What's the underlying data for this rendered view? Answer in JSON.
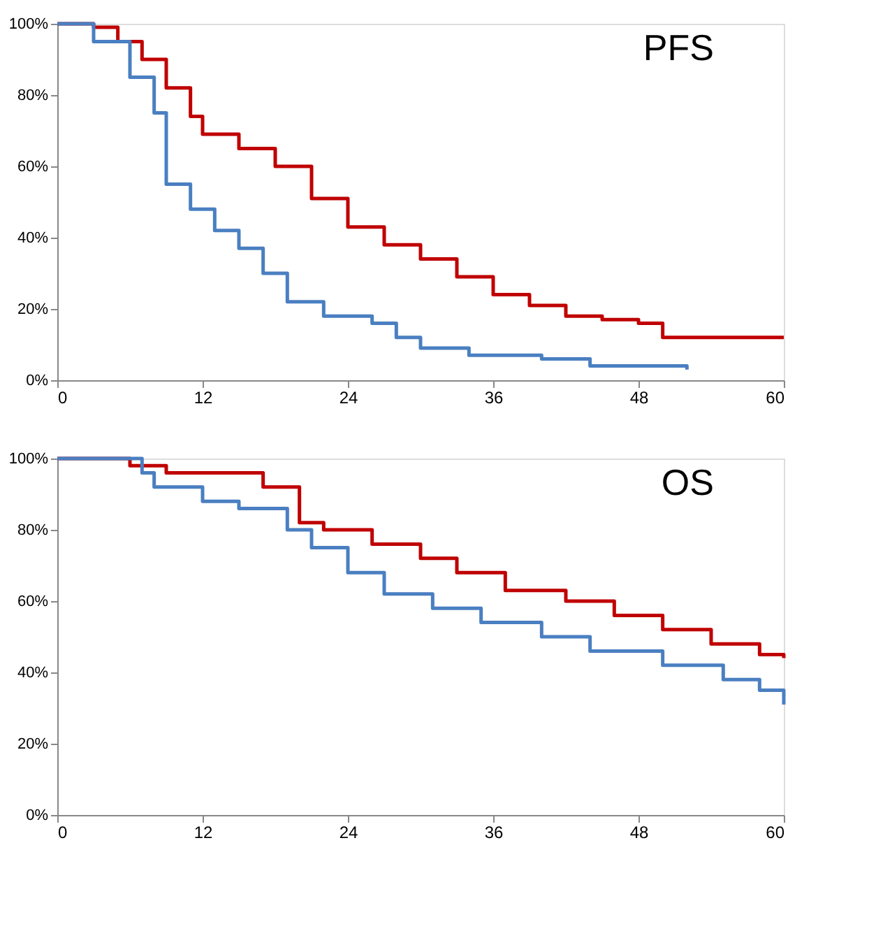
{
  "chart_data": [
    {
      "type": "step",
      "title": "PFS",
      "xlim": [
        0,
        60
      ],
      "xticks": [
        0,
        12,
        24,
        36,
        48,
        60
      ],
      "ylim": [
        0,
        100
      ],
      "yticks": [
        {
          "value": 0,
          "label": "0%"
        },
        {
          "value": 20,
          "label": "20%"
        },
        {
          "value": 40,
          "label": "40%"
        },
        {
          "value": 60,
          "label": "60%"
        },
        {
          "value": 80,
          "label": "80%"
        },
        {
          "value": 100,
          "label": "100%"
        }
      ],
      "grid": false,
      "legend": false,
      "series": [
        {
          "color": "#c00000",
          "x": [
            0,
            3,
            5,
            7,
            9,
            11,
            12,
            15,
            18,
            21,
            24,
            27,
            30,
            33,
            36,
            39,
            42,
            45,
            48,
            50,
            55,
            60
          ],
          "values": [
            100,
            99,
            95,
            90,
            82,
            74,
            69,
            65,
            60,
            51,
            43,
            38,
            34,
            29,
            24,
            21,
            18,
            17,
            16,
            12,
            12,
            12
          ]
        },
        {
          "color": "#4a7fc1",
          "x": [
            0,
            3,
            6,
            8,
            9,
            11,
            13,
            15,
            17,
            19,
            22,
            26,
            28,
            30,
            34,
            40,
            44,
            52
          ],
          "values": [
            100,
            95,
            85,
            75,
            55,
            48,
            42,
            37,
            30,
            22,
            18,
            16,
            12,
            9,
            7,
            6,
            4,
            3
          ]
        }
      ]
    },
    {
      "type": "step",
      "title": "OS",
      "xlim": [
        0,
        60
      ],
      "xticks": [
        0,
        12,
        24,
        36,
        48,
        60
      ],
      "ylim": [
        0,
        100
      ],
      "yticks": [
        {
          "value": 0,
          "label": "0%"
        },
        {
          "value": 20,
          "label": "20%"
        },
        {
          "value": 40,
          "label": "40%"
        },
        {
          "value": 60,
          "label": "60%"
        },
        {
          "value": 80,
          "label": "80%"
        },
        {
          "value": 100,
          "label": "100%"
        }
      ],
      "grid": false,
      "legend": false,
      "series": [
        {
          "color": "#c00000",
          "x": [
            0,
            6,
            9,
            14,
            17,
            20,
            22,
            26,
            30,
            33,
            37,
            42,
            46,
            50,
            54,
            58,
            60
          ],
          "values": [
            100,
            98,
            96,
            96,
            92,
            82,
            80,
            76,
            72,
            68,
            63,
            60,
            56,
            52,
            48,
            45,
            44
          ]
        },
        {
          "color": "#4a7fc1",
          "x": [
            0,
            5,
            7,
            8,
            12,
            15,
            19,
            21,
            24,
            27,
            31,
            35,
            40,
            44,
            50,
            55,
            58,
            60
          ],
          "values": [
            100,
            100,
            96,
            92,
            88,
            86,
            80,
            75,
            68,
            62,
            58,
            54,
            50,
            46,
            42,
            38,
            35,
            31
          ]
        }
      ]
    }
  ]
}
